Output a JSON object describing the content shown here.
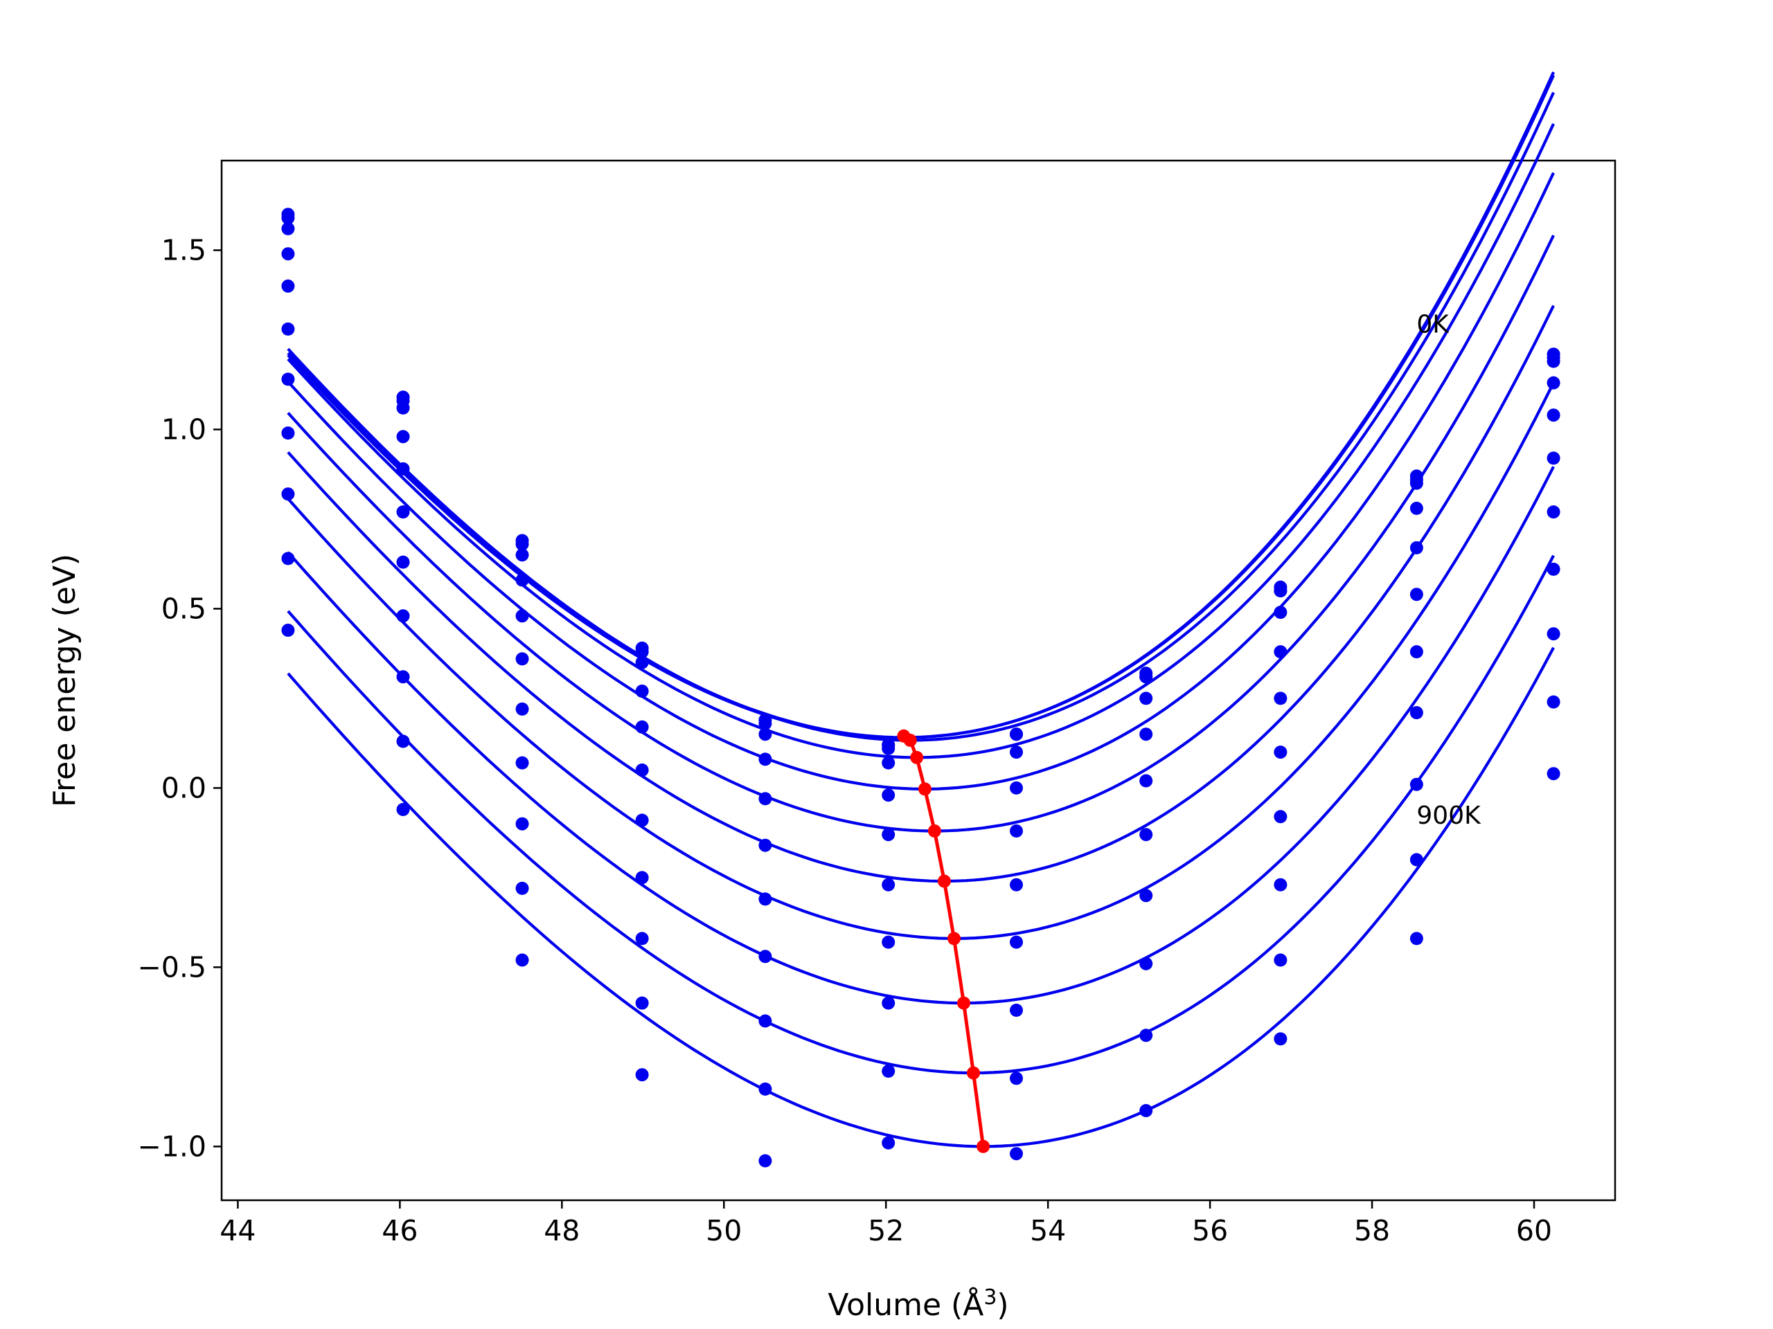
{
  "chart_data": {
    "type": "line",
    "title": "",
    "xlabel": "Volume (Å",
    "xlabel_sup": "3",
    "xlabel_close": ")",
    "ylabel": "Free energy (eV)",
    "xlim": [
      43.8,
      61.0
    ],
    "ylim": [
      -1.15,
      1.75
    ],
    "xticks": [
      44,
      46,
      48,
      50,
      52,
      54,
      56,
      58,
      60
    ],
    "yticks": [
      -1.0,
      -0.5,
      0.0,
      0.5,
      1.0,
      1.5
    ],
    "xtick_labels": [
      "44",
      "46",
      "48",
      "50",
      "52",
      "54",
      "56",
      "58",
      "60"
    ],
    "ytick_labels": [
      "−1.0",
      "−0.5",
      "0.0",
      "0.5",
      "1.0",
      "1.5"
    ],
    "grid": false,
    "annotations": [
      {
        "text": "0K",
        "x": 58.55,
        "y": 1.27
      },
      {
        "text": "900K",
        "x": 58.55,
        "y": -0.1
      }
    ],
    "volumes": [
      44.62,
      46.04,
      47.51,
      48.99,
      50.51,
      52.03,
      53.61,
      55.21,
      56.87,
      58.55,
      60.24
    ],
    "fit_series": [
      {
        "v0": 52.2,
        "emin": 0.14,
        "a": 0.0235,
        "b": 0.00065,
        "points": [
          1.6,
          1.09,
          0.69,
          0.39,
          0.19,
          0.12,
          0.15,
          0.32,
          0.56,
          0.87,
          1.21
        ]
      },
      {
        "v0": 52.22,
        "emin": 0.141,
        "a": 0.0235,
        "b": 0.00065,
        "points": [
          1.59,
          1.08,
          0.68,
          0.38,
          0.18,
          0.12,
          0.15,
          0.31,
          0.55,
          0.86,
          1.2
        ]
      },
      {
        "v0": 52.3,
        "emin": 0.133,
        "a": 0.0235,
        "b": 0.00065,
        "points": [
          1.56,
          1.06,
          0.65,
          0.35,
          0.15,
          0.11,
          0.15,
          0.31,
          0.55,
          0.85,
          1.19
        ]
      },
      {
        "v0": 52.38,
        "emin": 0.085,
        "a": 0.0235,
        "b": 0.00065,
        "points": [
          1.49,
          0.98,
          0.58,
          0.27,
          0.08,
          0.07,
          0.1,
          0.25,
          0.49,
          0.78,
          1.13
        ]
      },
      {
        "v0": 52.48,
        "emin": -0.003,
        "a": 0.0235,
        "b": 0.00065,
        "points": [
          1.4,
          0.89,
          0.48,
          0.17,
          -0.03,
          -0.02,
          0.0,
          0.15,
          0.38,
          0.67,
          1.04
        ]
      },
      {
        "v0": 52.6,
        "emin": -0.12,
        "a": 0.0235,
        "b": 0.00065,
        "points": [
          1.28,
          0.77,
          0.36,
          0.05,
          -0.16,
          -0.13,
          -0.12,
          0.02,
          0.25,
          0.54,
          0.92
        ]
      },
      {
        "v0": 52.72,
        "emin": -0.26,
        "a": 0.0235,
        "b": 0.00065,
        "points": [
          1.14,
          0.63,
          0.22,
          -0.09,
          -0.31,
          -0.27,
          -0.27,
          -0.13,
          0.1,
          0.38,
          0.77
        ]
      },
      {
        "v0": 52.84,
        "emin": -0.42,
        "a": 0.0235,
        "b": 0.00065,
        "points": [
          0.99,
          0.48,
          0.07,
          -0.25,
          -0.47,
          -0.43,
          -0.43,
          -0.3,
          -0.08,
          0.21,
          0.61
        ]
      },
      {
        "v0": 52.96,
        "emin": -0.6,
        "a": 0.0235,
        "b": 0.00065,
        "points": [
          0.82,
          0.31,
          -0.1,
          -0.42,
          -0.65,
          -0.6,
          -0.62,
          -0.49,
          -0.27,
          0.01,
          0.43
        ]
      },
      {
        "v0": 53.08,
        "emin": -0.795,
        "a": 0.0235,
        "b": 0.00065,
        "points": [
          0.64,
          0.13,
          -0.28,
          -0.6,
          -0.84,
          -0.79,
          -0.81,
          -0.69,
          -0.48,
          -0.2,
          0.24
        ]
      },
      {
        "v0": 53.2,
        "emin": -1.0,
        "a": 0.0235,
        "b": 0.00065,
        "points": [
          0.44,
          -0.06,
          -0.48,
          -0.8,
          -1.04,
          -0.99,
          -1.02,
          -0.9,
          -0.7,
          -0.42,
          0.04
        ]
      }
    ],
    "equilibrium_line": {
      "color": "#ff0000",
      "x": [
        52.22,
        52.3,
        52.38,
        52.48,
        52.6,
        52.72,
        52.84,
        52.96,
        53.08,
        53.2
      ],
      "y": [
        0.145,
        0.133,
        0.085,
        -0.003,
        -0.12,
        -0.26,
        -0.42,
        -0.6,
        -0.795,
        -1.0
      ]
    },
    "fit_color": "#0000ee",
    "point_color": "#0000ee"
  }
}
